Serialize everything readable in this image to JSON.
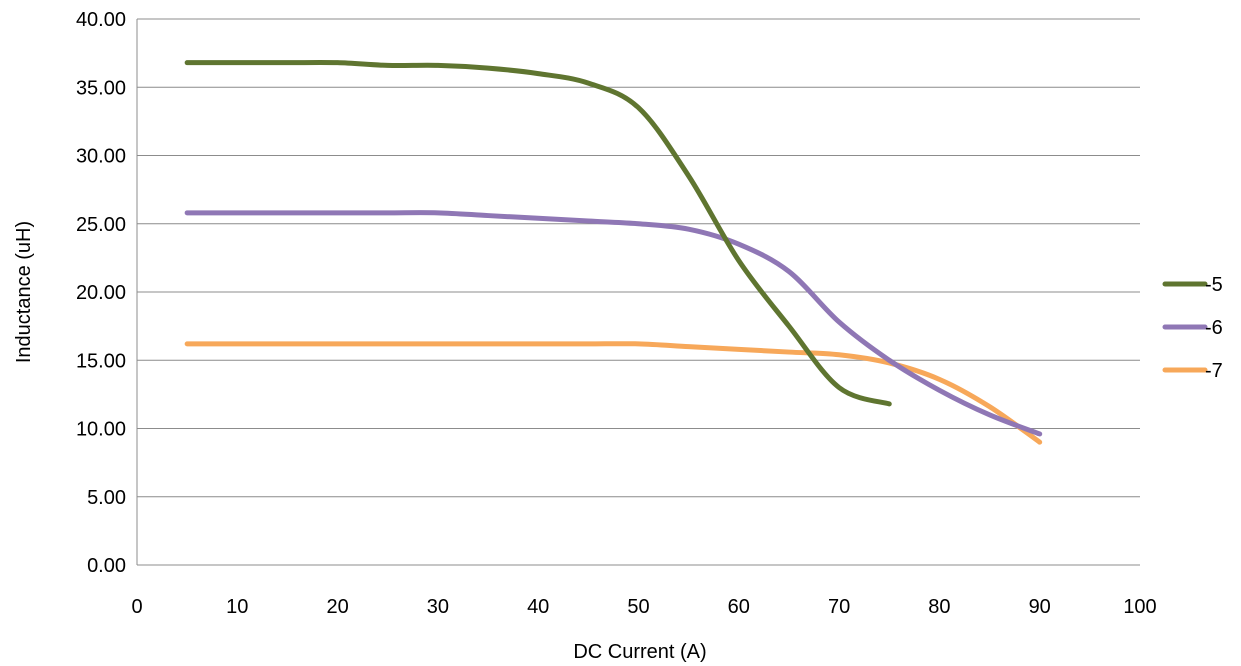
{
  "chart_data": {
    "type": "line",
    "title": "",
    "xlabel": "DC Current (A)",
    "ylabel": "Inductance (uH)",
    "xlim": [
      0,
      100
    ],
    "ylim": [
      0,
      40
    ],
    "xticks": [
      "0",
      "10",
      "20",
      "30",
      "40",
      "50",
      "60",
      "70",
      "80",
      "90",
      "100"
    ],
    "yticks": [
      "0.00",
      "5.00",
      "10.00",
      "15.00",
      "20.00",
      "25.00",
      "30.00",
      "35.00",
      "40.00"
    ],
    "grid": "horizontal",
    "legend_position": "right",
    "series": [
      {
        "name": "-5",
        "color": "#5f7530",
        "x": [
          5,
          10,
          15,
          20,
          25,
          30,
          35,
          40,
          45,
          50,
          55,
          60,
          65,
          70,
          75
        ],
        "y": [
          36.8,
          36.8,
          36.8,
          36.8,
          36.6,
          36.6,
          36.4,
          36.0,
          35.3,
          33.5,
          28.5,
          22.3,
          17.5,
          13.0,
          11.8
        ]
      },
      {
        "name": "-6",
        "color": "#8f77b5",
        "x": [
          5,
          10,
          15,
          20,
          25,
          30,
          35,
          40,
          45,
          50,
          55,
          60,
          65,
          70,
          75,
          80,
          85,
          90
        ],
        "y": [
          25.8,
          25.8,
          25.8,
          25.8,
          25.8,
          25.8,
          25.6,
          25.4,
          25.2,
          25.0,
          24.6,
          23.5,
          21.5,
          17.8,
          15.0,
          12.8,
          11.0,
          9.6
        ]
      },
      {
        "name": "-7",
        "color": "#f7a85a",
        "x": [
          5,
          10,
          15,
          20,
          25,
          30,
          35,
          40,
          45,
          50,
          55,
          60,
          65,
          70,
          75,
          80,
          85,
          90
        ],
        "y": [
          16.2,
          16.2,
          16.2,
          16.2,
          16.2,
          16.2,
          16.2,
          16.2,
          16.2,
          16.2,
          16.0,
          15.8,
          15.6,
          15.4,
          14.8,
          13.6,
          11.6,
          9.0
        ]
      }
    ]
  }
}
